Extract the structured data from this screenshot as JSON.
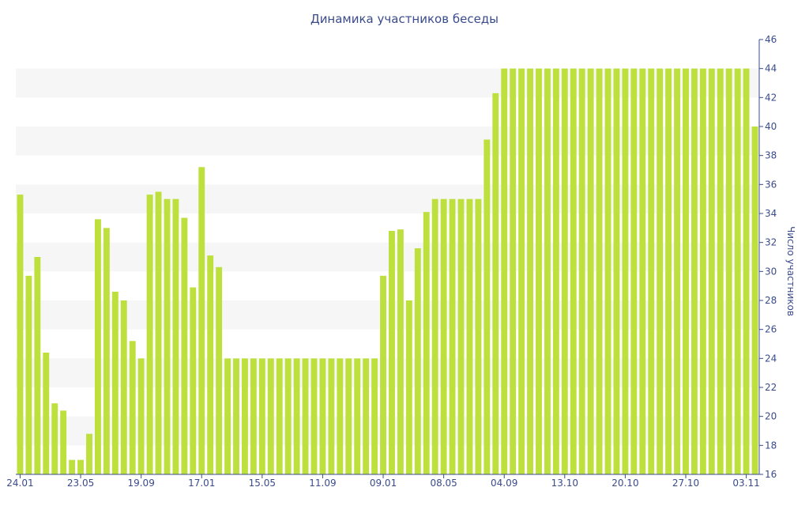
{
  "chart_data": {
    "type": "bar",
    "title": "Динамика участников беседы",
    "xlabel": "",
    "ylabel": "Число участников",
    "ylim": [
      16,
      46
    ],
    "y_ticks": [
      16,
      18,
      20,
      22,
      24,
      26,
      28,
      30,
      32,
      34,
      36,
      38,
      40,
      42,
      44,
      46
    ],
    "y_axis_side": "right",
    "grid": "alternating horizontal bands",
    "x_tick_labels": [
      {
        "index": 0,
        "label": "24.01"
      },
      {
        "index": 7,
        "label": "23.05"
      },
      {
        "index": 14,
        "label": "19.09"
      },
      {
        "index": 21,
        "label": "17.01"
      },
      {
        "index": 28,
        "label": "15.05"
      },
      {
        "index": 35,
        "label": "11.09"
      },
      {
        "index": 42,
        "label": "09.01"
      },
      {
        "index": 49,
        "label": "08.05"
      },
      {
        "index": 56,
        "label": "04.09"
      },
      {
        "index": 63,
        "label": "13.10"
      },
      {
        "index": 70,
        "label": "20.10"
      },
      {
        "index": 77,
        "label": "27.10"
      },
      {
        "index": 84,
        "label": "03.11"
      }
    ],
    "series": [
      {
        "values": [
          35.3,
          29.7,
          31,
          24.4,
          20.9,
          20.4,
          17,
          17,
          18.8,
          33.6,
          33,
          28.6,
          28,
          25.2,
          24,
          35.3,
          35.5,
          35,
          35,
          33.7,
          28.9,
          37.2,
          31.1,
          30.3,
          24,
          24,
          24,
          24,
          24,
          24,
          24,
          24,
          24,
          24,
          24,
          24,
          24,
          24,
          24,
          24,
          24,
          24,
          29.7,
          32.8,
          32.9,
          28,
          31.6,
          34.1,
          35,
          35,
          35,
          35,
          35,
          35,
          39.1,
          42.3,
          44,
          44,
          44,
          44,
          44,
          44,
          44,
          44,
          44,
          44,
          44,
          44,
          44,
          44,
          44,
          44,
          44,
          44,
          44,
          44,
          44,
          44,
          44,
          44,
          44,
          44,
          44,
          44,
          44,
          40
        ]
      }
    ],
    "colors": {
      "bar": "#bde03c",
      "band": "#f6f6f6",
      "axis": "#3a4b8c",
      "text": "#3a4b8c"
    }
  }
}
